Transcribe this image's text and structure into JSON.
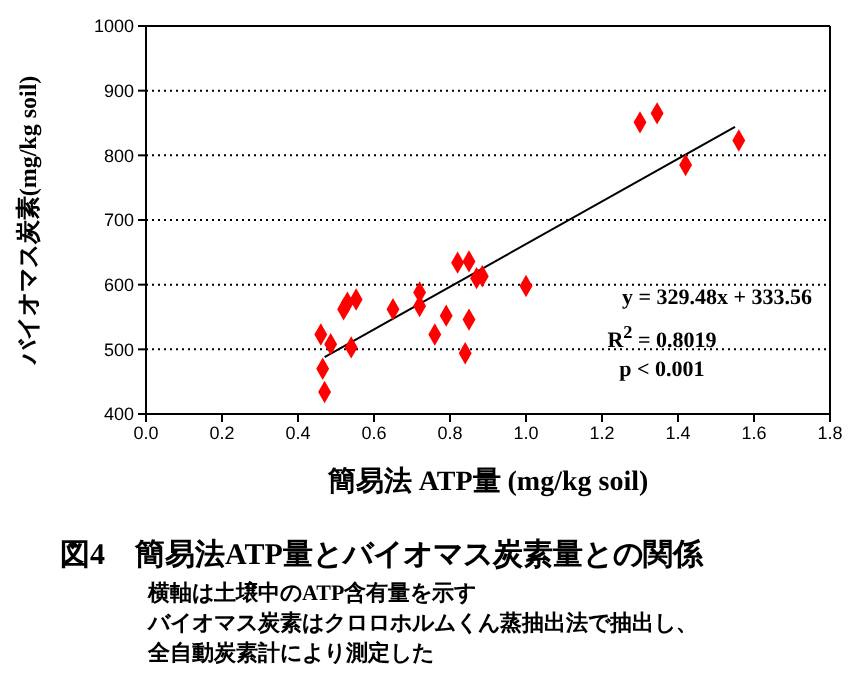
{
  "chart_data": {
    "type": "scatter",
    "title": "図4　簡易法ATP量とバイオマス炭素量との関係",
    "xlabel": "簡易法 ATP量 (mg/kg soil)",
    "ylabel": "バイオマス炭素(mg/kg soil)",
    "x": [
      0.46,
      0.486,
      0.465,
      0.47,
      0.52,
      0.53,
      0.553,
      0.54,
      0.65,
      0.72,
      0.72,
      0.76,
      0.79,
      0.82,
      0.85,
      0.84,
      0.85,
      0.87,
      0.885,
      1.0,
      1.3,
      1.345,
      1.42,
      1.56
    ],
    "series": [
      {
        "type": "scatter",
        "color": "#ff0000",
        "values": [
          523,
          508,
          470,
          434,
          562,
          572,
          577,
          503,
          562,
          588,
          567,
          523,
          552,
          634,
          636,
          494,
          546,
          610,
          613,
          598,
          851,
          865,
          785,
          823
        ]
      },
      {
        "type": "line",
        "color": "#000000",
        "x": [
          0.47,
          1.55
        ],
        "values": [
          488,
          844
        ],
        "marker": "none"
      }
    ],
    "marker": "diamond",
    "xlim": [
      0,
      1.8
    ],
    "xticks": [
      {
        "value": 0,
        "label": "0.0"
      },
      0.2,
      0.4,
      0.6,
      0.8,
      {
        "value": 1,
        "label": "1.0"
      },
      1.2,
      1.4,
      1.6,
      1.8
    ],
    "ylim": [
      400,
      1000
    ],
    "yticks": [
      400,
      500,
      600,
      700,
      800,
      900,
      1000
    ],
    "grid": "y",
    "legend": false,
    "annotations": [
      "y = 329.48x + 333.56",
      "R$^{2}$ = 0.8019",
      "p < 0.001",
      "横軸は土壌中のATP含有量を示す",
      "バイオマス炭素はクロロホルムくん蒸抽出法で抽出し、",
      "全自動炭素計により測定した"
    ]
  }
}
